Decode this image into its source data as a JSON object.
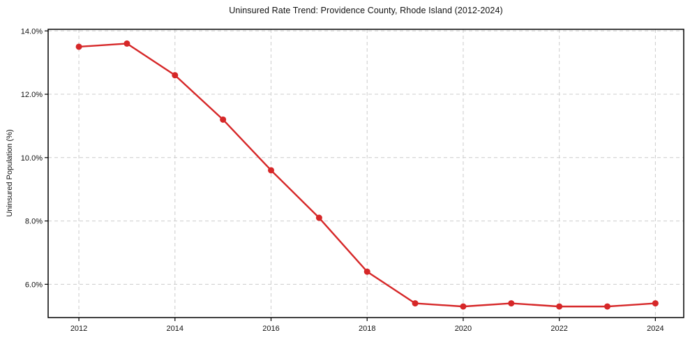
{
  "chart_data": {
    "type": "line",
    "title": "Uninsured Rate Trend: Providence County, Rhode Island (2012-2024)",
    "xlabel": "",
    "ylabel": "Uninsured Population (%)",
    "x": [
      2012,
      2013,
      2014,
      2015,
      2016,
      2017,
      2018,
      2019,
      2020,
      2021,
      2022,
      2023,
      2024
    ],
    "series": [
      {
        "name": "Uninsured rate",
        "values": [
          13.5,
          13.6,
          12.6,
          11.2,
          9.6,
          8.1,
          6.4,
          5.4,
          5.3,
          5.4,
          5.3,
          5.3,
          5.4
        ]
      }
    ],
    "xlim": [
      2011.36,
      2024.59
    ],
    "ylim": [
      4.95,
      14.05
    ],
    "xticks": {
      "values": [
        2012,
        2014,
        2016,
        2018,
        2020,
        2022,
        2024
      ],
      "labels": [
        "2012",
        "2014",
        "2016",
        "2018",
        "2020",
        "2022",
        "2024"
      ]
    },
    "yticks": {
      "values": [
        6,
        8,
        10,
        12,
        14
      ],
      "labels": [
        "6.0%",
        "8.0%",
        "10.0%",
        "12.0%",
        "14.0%"
      ]
    },
    "grid": true,
    "grid_style": "dashed",
    "legend": "none",
    "colors": {
      "line": "#d62728",
      "marker": "#d62728",
      "grid": "#cccccc",
      "spine": "#000000",
      "text": "#111111",
      "background": "#ffffff"
    },
    "marker": "circle"
  }
}
